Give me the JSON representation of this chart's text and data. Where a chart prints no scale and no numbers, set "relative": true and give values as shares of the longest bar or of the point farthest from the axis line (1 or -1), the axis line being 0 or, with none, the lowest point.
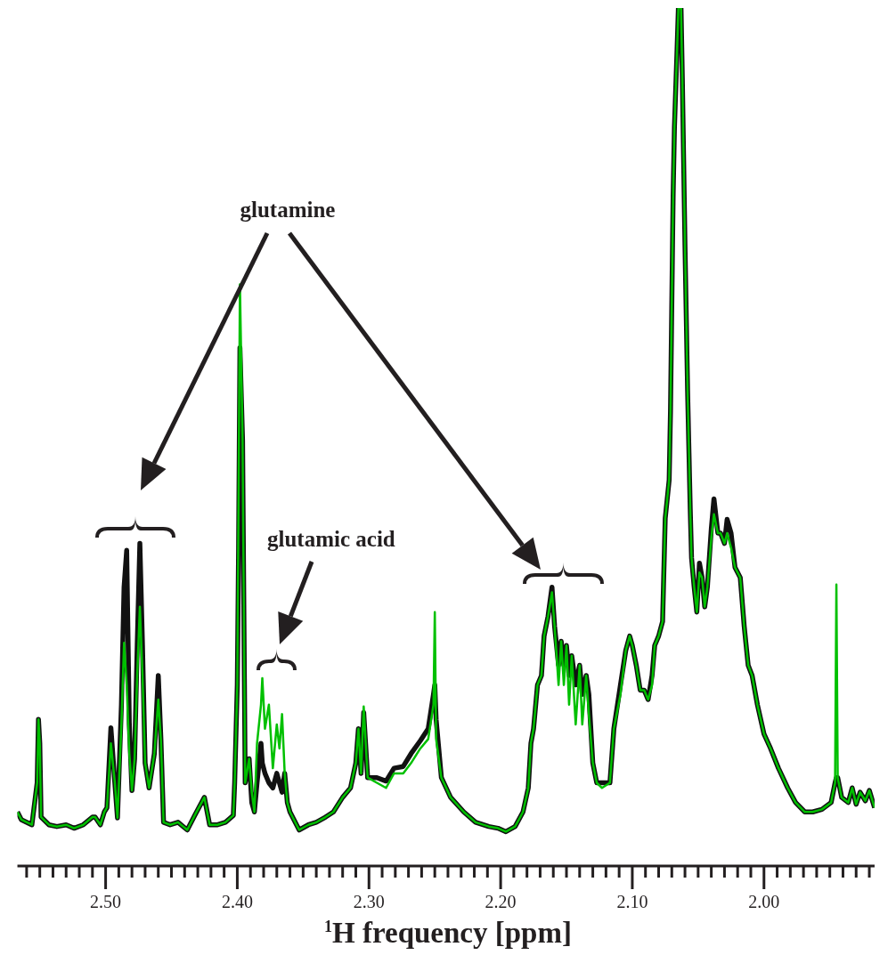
{
  "chart_data": {
    "type": "line",
    "xlabel": "$^{1}$H frequency [ppm]",
    "annotations": [
      "glutamine",
      "glutamic acid"
    ],
    "relative": true,
    "legend": false,
    "grid": false,
    "marker": "none",
    "line_style": "solid",
    "xlim": [
      2.567,
      1.916
    ],
    "xticks": [
      {
        "value": 2.56,
        "label": null
      },
      {
        "value": 2.55,
        "label": null
      },
      {
        "value": 2.54,
        "label": null
      },
      {
        "value": 2.53,
        "label": null
      },
      {
        "value": 2.52,
        "label": null
      },
      {
        "value": 2.51,
        "label": null
      },
      {
        "value": 2.5,
        "label": "2.50"
      },
      {
        "value": 2.49,
        "label": null
      },
      {
        "value": 2.48,
        "label": null
      },
      {
        "value": 2.47,
        "label": null
      },
      {
        "value": 2.46,
        "label": null
      },
      {
        "value": 2.45,
        "label": null
      },
      {
        "value": 2.44,
        "label": null
      },
      {
        "value": 2.43,
        "label": null
      },
      {
        "value": 2.42,
        "label": null
      },
      {
        "value": 2.41,
        "label": null
      },
      {
        "value": 2.4,
        "label": "2.40"
      },
      {
        "value": 2.39,
        "label": null
      },
      {
        "value": 2.38,
        "label": null
      },
      {
        "value": 2.37,
        "label": null
      },
      {
        "value": 2.36,
        "label": null
      },
      {
        "value": 2.35,
        "label": null
      },
      {
        "value": 2.34,
        "label": null
      },
      {
        "value": 2.33,
        "label": null
      },
      {
        "value": 2.32,
        "label": null
      },
      {
        "value": 2.31,
        "label": null
      },
      {
        "value": 2.3,
        "label": "2.30"
      },
      {
        "value": 2.29,
        "label": null
      },
      {
        "value": 2.28,
        "label": null
      },
      {
        "value": 2.27,
        "label": null
      },
      {
        "value": 2.26,
        "label": null
      },
      {
        "value": 2.25,
        "label": null
      },
      {
        "value": 2.24,
        "label": null
      },
      {
        "value": 2.23,
        "label": null
      },
      {
        "value": 2.22,
        "label": null
      },
      {
        "value": 2.21,
        "label": null
      },
      {
        "value": 2.2,
        "label": "2.20"
      },
      {
        "value": 2.19,
        "label": null
      },
      {
        "value": 2.18,
        "label": null
      },
      {
        "value": 2.17,
        "label": null
      },
      {
        "value": 2.16,
        "label": null
      },
      {
        "value": 2.15,
        "label": null
      },
      {
        "value": 2.14,
        "label": null
      },
      {
        "value": 2.13,
        "label": null
      },
      {
        "value": 2.12,
        "label": null
      },
      {
        "value": 2.11,
        "label": null
      },
      {
        "value": 2.1,
        "label": "2.10"
      },
      {
        "value": 2.09,
        "label": null
      },
      {
        "value": 2.08,
        "label": null
      },
      {
        "value": 2.07,
        "label": null
      },
      {
        "value": 2.06,
        "label": null
      },
      {
        "value": 2.05,
        "label": null
      },
      {
        "value": 2.04,
        "label": null
      },
      {
        "value": 2.03,
        "label": null
      },
      {
        "value": 2.02,
        "label": null
      },
      {
        "value": 2.01,
        "label": null
      },
      {
        "value": 2.0,
        "label": "2.00"
      },
      {
        "value": 1.99,
        "label": null
      },
      {
        "value": 1.98,
        "label": null
      },
      {
        "value": 1.97,
        "label": null
      },
      {
        "value": 1.96,
        "label": null
      },
      {
        "value": 1.95,
        "label": null
      },
      {
        "value": 1.94,
        "label": null
      },
      {
        "value": 1.93,
        "label": null
      },
      {
        "value": 1.92,
        "label": null
      }
    ],
    "x": [
      2.567,
      2.564,
      2.556,
      2.552,
      2.551,
      2.55,
      2.549,
      2.543,
      2.537,
      2.53,
      2.524,
      2.517,
      2.51,
      2.508,
      2.504,
      2.501,
      2.499,
      2.496,
      2.493,
      2.491,
      2.488,
      2.486,
      2.484,
      2.482,
      2.48,
      2.478,
      2.476,
      2.474,
      2.472,
      2.47,
      2.467,
      2.463,
      2.46,
      2.458,
      2.456,
      2.451,
      2.445,
      2.438,
      2.432,
      2.425,
      2.421,
      2.415,
      2.409,
      2.403,
      2.402,
      2.4,
      2.399,
      2.398,
      2.396,
      2.394,
      2.391,
      2.389,
      2.387,
      2.385,
      2.382,
      2.381,
      2.379,
      2.376,
      2.373,
      2.37,
      2.368,
      2.366,
      2.364,
      2.362,
      2.36,
      2.353,
      2.346,
      2.34,
      2.333,
      2.327,
      2.32,
      2.314,
      2.31,
      2.308,
      2.306,
      2.304,
      2.301,
      2.294,
      2.287,
      2.281,
      2.274,
      2.268,
      2.261,
      2.255,
      2.251,
      2.25,
      2.249,
      2.245,
      2.238,
      2.228,
      2.219,
      2.209,
      2.202,
      2.196,
      2.189,
      2.183,
      2.179,
      2.177,
      2.175,
      2.172,
      2.169,
      2.167,
      2.164,
      2.161,
      2.159,
      2.156,
      2.154,
      2.152,
      2.15,
      2.148,
      2.146,
      2.143,
      2.14,
      2.138,
      2.135,
      2.133,
      2.13,
      2.127,
      2.123,
      2.117,
      2.114,
      2.109,
      2.105,
      2.102,
      2.1,
      2.097,
      2.094,
      2.091,
      2.088,
      2.085,
      2.083,
      2.08,
      2.077,
      2.075,
      2.072,
      2.071,
      2.069,
      2.068,
      2.066,
      2.065,
      2.063,
      2.062,
      2.06,
      2.058,
      2.056,
      2.055,
      2.053,
      2.051,
      2.049,
      2.047,
      2.045,
      2.043,
      2.04,
      2.038,
      2.035,
      2.033,
      2.03,
      2.028,
      2.025,
      2.022,
      2.018,
      2.015,
      2.012,
      2.009,
      2.005,
      2.0,
      1.995,
      1.989,
      1.982,
      1.976,
      1.969,
      1.963,
      1.956,
      1.949,
      1.946,
      1.945,
      1.944,
      1.941,
      1.936,
      1.933,
      1.93,
      1.927,
      1.923,
      1.92,
      1.916
    ],
    "series": [
      {
        "color": "#111111",
        "values": [
          0.063,
          0.054,
          0.048,
          0.097,
          0.171,
          0.143,
          0.057,
          0.048,
          0.046,
          0.048,
          0.044,
          0.048,
          0.057,
          0.057,
          0.048,
          0.063,
          0.068,
          0.161,
          0.097,
          0.056,
          0.188,
          0.325,
          0.368,
          0.165,
          0.088,
          0.125,
          0.257,
          0.376,
          0.257,
          0.12,
          0.091,
          0.131,
          0.222,
          0.147,
          0.051,
          0.048,
          0.051,
          0.042,
          0.06,
          0.08,
          0.048,
          0.048,
          0.051,
          0.059,
          0.097,
          0.211,
          0.371,
          0.604,
          0.496,
          0.097,
          0.125,
          0.074,
          0.063,
          0.097,
          0.143,
          0.12,
          0.108,
          0.097,
          0.091,
          0.108,
          0.097,
          0.086,
          0.108,
          0.074,
          0.063,
          0.042,
          0.048,
          0.051,
          0.057,
          0.063,
          0.08,
          0.091,
          0.12,
          0.16,
          0.108,
          0.179,
          0.103,
          0.103,
          0.099,
          0.114,
          0.116,
          0.131,
          0.146,
          0.16,
          0.2,
          0.211,
          0.171,
          0.103,
          0.08,
          0.063,
          0.051,
          0.046,
          0.044,
          0.04,
          0.046,
          0.063,
          0.091,
          0.143,
          0.16,
          0.211,
          0.222,
          0.268,
          0.291,
          0.325,
          0.279,
          0.234,
          0.262,
          0.234,
          0.257,
          0.222,
          0.245,
          0.211,
          0.234,
          0.2,
          0.222,
          0.2,
          0.12,
          0.097,
          0.097,
          0.097,
          0.16,
          0.211,
          0.251,
          0.268,
          0.257,
          0.234,
          0.205,
          0.205,
          0.194,
          0.222,
          0.257,
          0.268,
          0.285,
          0.405,
          0.45,
          0.53,
          0.781,
          0.861,
          0.952,
          1,
          1,
          0.918,
          0.724,
          0.553,
          0.416,
          0.359,
          0.325,
          0.296,
          0.353,
          0.336,
          0.302,
          0.325,
          0.393,
          0.428,
          0.388,
          0.388,
          0.376,
          0.404,
          0.388,
          0.348,
          0.336,
          0.279,
          0.234,
          0.222,
          0.188,
          0.154,
          0.137,
          0.114,
          0.091,
          0.074,
          0.063,
          0.063,
          0.066,
          0.074,
          0.097,
          0.103,
          0.103,
          0.08,
          0.074,
          0.091,
          0.072,
          0.086,
          0.076,
          0.088,
          0.068
        ]
      },
      {
        "color": "#00c000",
        "values": [
          0.063,
          0.054,
          0.048,
          0.097,
          0.171,
          0.143,
          0.057,
          0.048,
          0.046,
          0.048,
          0.044,
          0.048,
          0.057,
          0.057,
          0.048,
          0.063,
          0.068,
          0.143,
          0.097,
          0.056,
          0.165,
          0.26,
          0.211,
          0.131,
          0.088,
          0.125,
          0.222,
          0.302,
          0.222,
          0.12,
          0.091,
          0.131,
          0.194,
          0.147,
          0.051,
          0.048,
          0.051,
          0.042,
          0.06,
          0.08,
          0.048,
          0.048,
          0.051,
          0.059,
          0.097,
          0.211,
          0.439,
          0.678,
          0.496,
          0.097,
          0.125,
          0.086,
          0.063,
          0.143,
          0.188,
          0.219,
          0.16,
          0.188,
          0.114,
          0.165,
          0.137,
          0.177,
          0.108,
          0.074,
          0.063,
          0.042,
          0.048,
          0.051,
          0.057,
          0.063,
          0.08,
          0.091,
          0.12,
          0.16,
          0.108,
          0.186,
          0.103,
          0.097,
          0.091,
          0.108,
          0.108,
          0.12,
          0.137,
          0.148,
          0.188,
          0.296,
          0.148,
          0.103,
          0.08,
          0.063,
          0.051,
          0.046,
          0.044,
          0.04,
          0.046,
          0.063,
          0.091,
          0.143,
          0.16,
          0.211,
          0.222,
          0.268,
          0.291,
          0.319,
          0.279,
          0.211,
          0.262,
          0.211,
          0.257,
          0.188,
          0.245,
          0.165,
          0.234,
          0.165,
          0.222,
          0.177,
          0.12,
          0.097,
          0.091,
          0.097,
          0.16,
          0.2,
          0.251,
          0.268,
          0.257,
          0.234,
          0.205,
          0.205,
          0.194,
          0.211,
          0.257,
          0.268,
          0.285,
          0.405,
          0.45,
          0.53,
          0.781,
          0.861,
          0.952,
          1,
          1,
          0.918,
          0.724,
          0.553,
          0.416,
          0.359,
          0.325,
          0.296,
          0.342,
          0.336,
          0.302,
          0.325,
          0.382,
          0.41,
          0.388,
          0.388,
          0.376,
          0.388,
          0.371,
          0.348,
          0.336,
          0.279,
          0.234,
          0.222,
          0.188,
          0.154,
          0.137,
          0.114,
          0.091,
          0.074,
          0.063,
          0.063,
          0.066,
          0.074,
          0.097,
          0.328,
          0.103,
          0.08,
          0.074,
          0.091,
          0.072,
          0.086,
          0.076,
          0.088,
          0.068
        ]
      }
    ]
  }
}
